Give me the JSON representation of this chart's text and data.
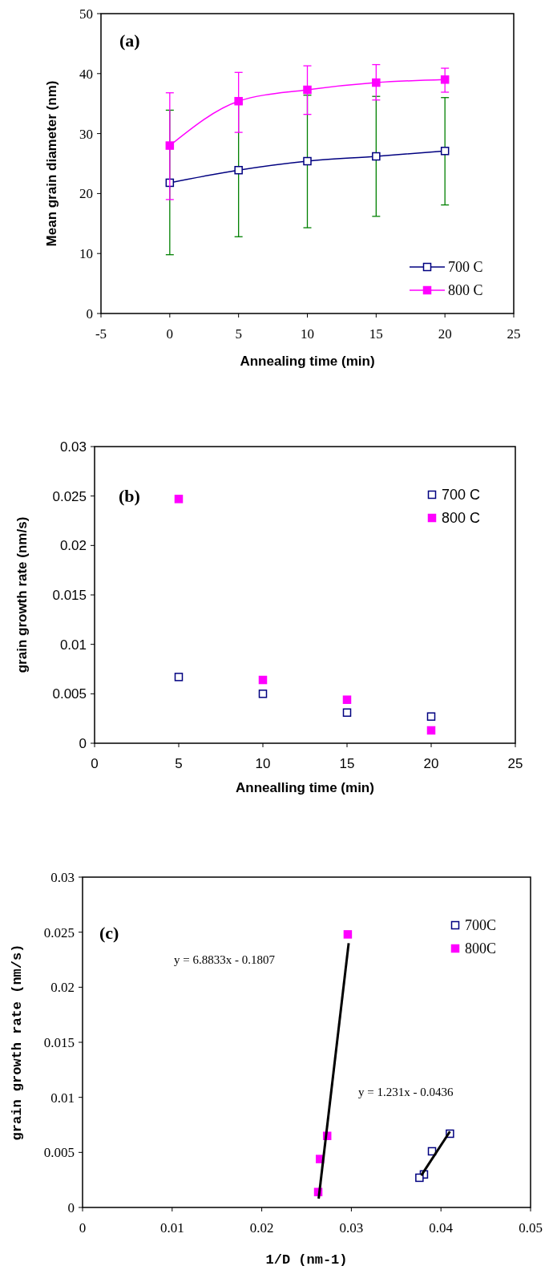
{
  "chart_data": [
    {
      "type": "line",
      "xlabel": "Annealing time (min)",
      "ylabel": "Mean grain diameter (nm)",
      "annotations": [
        "(a)"
      ],
      "xlim": [
        -5,
        25
      ],
      "xticks": [
        -5,
        0,
        5,
        10,
        15,
        20,
        25
      ],
      "ylim": [
        0,
        50
      ],
      "yticks": [
        0,
        10,
        20,
        30,
        40,
        50
      ],
      "legend": "bottom right",
      "marker": "square",
      "grid": false,
      "x": [
        0,
        5,
        10,
        15,
        20
      ],
      "series": [
        {
          "name": "700 C",
          "color": "#000080",
          "values": [
            21.8,
            23.9,
            25.4,
            26.2,
            27.1
          ],
          "errors": [
            [
              9.8,
              33.9
            ],
            [
              12.8,
              35.0
            ],
            [
              14.3,
              36.4
            ],
            [
              16.2,
              36.2
            ],
            [
              18.1,
              36.0
            ]
          ]
        },
        {
          "name": "800 C",
          "color": "#ff00ff",
          "values": [
            28.0,
            35.4,
            37.3,
            38.5,
            39.0
          ],
          "errors": [
            [
              19.0,
              36.8
            ],
            [
              30.2,
              40.2
            ],
            [
              33.2,
              41.3
            ],
            [
              35.6,
              41.5
            ],
            [
              36.9,
              40.9
            ]
          ]
        }
      ]
    },
    {
      "type": "scatter",
      "xlabel": "Annealling time (min)",
      "ylabel": "grain growth rate (nm/s)",
      "annotations": [
        "(b)"
      ],
      "xlim": [
        0,
        25
      ],
      "xticks": [
        0,
        5,
        10,
        15,
        20,
        25
      ],
      "ylim": [
        0,
        0.03
      ],
      "yticks": [
        0,
        0.005,
        0.01,
        0.015,
        0.02,
        0.025,
        0.03
      ],
      "legend": "top right",
      "marker": "square",
      "grid": false,
      "x": [
        5,
        10,
        15,
        20
      ],
      "series": [
        {
          "name": "700 C",
          "color": "#000080",
          "values": [
            0.0067,
            0.005,
            0.0031,
            0.0027
          ]
        },
        {
          "name": "800 C",
          "color": "#ff00ff",
          "values": [
            0.0247,
            0.0064,
            0.0044,
            0.0013
          ]
        }
      ]
    },
    {
      "type": "scatter",
      "xlabel": "1/D (nm-1)",
      "ylabel": "grain growth rate (nm/s)",
      "annotations": [
        "(c)",
        "y = 6.8833x - 0.1807",
        "y = 1.231x - 0.0436"
      ],
      "xlim": [
        0,
        0.05
      ],
      "xticks": [
        0,
        0.01,
        0.02,
        0.03,
        0.04,
        0.05
      ],
      "ylim": [
        0,
        0.03
      ],
      "yticks": [
        0,
        0.005,
        0.01,
        0.015,
        0.02,
        0.025,
        0.03
      ],
      "legend": "top right",
      "marker": "square",
      "grid": false,
      "series": [
        {
          "name": "700C",
          "color": "#000080",
          "x": [
            0.041,
            0.039,
            0.0381,
            0.0376
          ],
          "values": [
            0.0067,
            0.0051,
            0.003,
            0.0027
          ]
        },
        {
          "name": "800C",
          "color": "#ff00ff",
          "x": [
            0.0296,
            0.0273,
            0.0265,
            0.0263
          ],
          "values": [
            0.0248,
            0.0065,
            0.0044,
            0.0014
          ]
        },
        {
          "type": "line",
          "marker": "none",
          "color": "#000000",
          "x": [
            0.02635,
            0.0297
          ],
          "values": [
            0.0008,
            0.024
          ]
        },
        {
          "type": "line",
          "marker": "none",
          "color": "#000000",
          "x": [
            0.0378,
            0.041
          ],
          "values": [
            0.0029,
            0.0069
          ]
        }
      ]
    }
  ]
}
